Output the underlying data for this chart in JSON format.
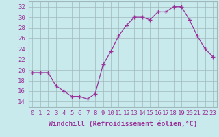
{
  "x": [
    0,
    1,
    2,
    3,
    4,
    5,
    6,
    7,
    8,
    9,
    10,
    11,
    12,
    13,
    14,
    15,
    16,
    17,
    18,
    19,
    20,
    21,
    22,
    23
  ],
  "y": [
    19.5,
    19.5,
    19.5,
    17.0,
    16.0,
    15.0,
    15.0,
    14.5,
    15.5,
    21.0,
    23.5,
    26.5,
    28.5,
    30.0,
    30.0,
    29.5,
    31.0,
    31.0,
    32.0,
    32.0,
    29.5,
    26.5,
    24.0,
    22.5
  ],
  "xlim": [
    -0.5,
    23.5
  ],
  "ylim": [
    13,
    33
  ],
  "yticks": [
    14,
    16,
    18,
    20,
    22,
    24,
    26,
    28,
    30,
    32
  ],
  "xtick_labels": [
    "0",
    "1",
    "2",
    "3",
    "4",
    "5",
    "6",
    "7",
    "8",
    "9",
    "10",
    "11",
    "12",
    "13",
    "14",
    "15",
    "16",
    "17",
    "18",
    "19",
    "20",
    "21",
    "22",
    "23"
  ],
  "xlabel": "Windchill (Refroidissement éolien,°C)",
  "line_color": "#993399",
  "marker_color": "#993399",
  "bg_color": "#c8eaec",
  "grid_color": "#a0b8bc",
  "tick_color": "#993399",
  "xlabel_color": "#993399",
  "label_fontsize": 7.0,
  "tick_fontsize": 6.5
}
